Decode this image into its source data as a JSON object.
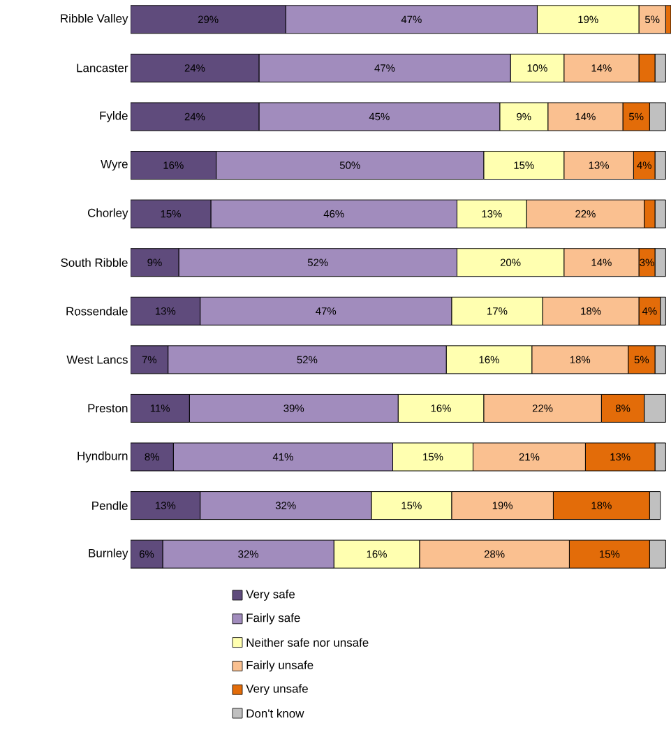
{
  "chart_data": {
    "type": "bar",
    "orientation": "horizontal",
    "stacked": true,
    "categories": [
      "Ribble Valley",
      "Lancaster",
      "Fylde",
      "Wyre",
      "Chorley",
      "South Ribble",
      "Rossendale",
      "West Lancs",
      "Preston",
      "Hyndburn",
      "Pendle",
      "Burnley"
    ],
    "tick_labels": "y",
    "legend": "bottom",
    "series": [
      {
        "name": "Very safe",
        "color": "#5f4b7c",
        "values": [
          29,
          24,
          24,
          16,
          15,
          9,
          13,
          7,
          11,
          8,
          13,
          6
        ],
        "value_labels": [
          "29%",
          "24%",
          "24%",
          "16%",
          "15%",
          "9%",
          "13%",
          "7%",
          "11%",
          "8%",
          "13%",
          "6%"
        ]
      },
      {
        "name": "Fairly safe",
        "color": "#a18cbd",
        "values": [
          47,
          47,
          45,
          50,
          46,
          52,
          47,
          52,
          39,
          41,
          32,
          32
        ],
        "value_labels": [
          "47%",
          "47%",
          "45%",
          "50%",
          "46%",
          "52%",
          "47%",
          "52%",
          "39%",
          "41%",
          "32%",
          "32%"
        ]
      },
      {
        "name": "Neither safe nor unsafe",
        "color": "#ffffb0",
        "values": [
          19,
          10,
          9,
          15,
          13,
          20,
          17,
          16,
          16,
          15,
          15,
          16
        ],
        "value_labels": [
          "19%",
          "10%",
          "9%",
          "15%",
          "13%",
          "20%",
          "17%",
          "16%",
          "16%",
          "15%",
          "15%",
          "16%"
        ]
      },
      {
        "name": "Fairly unsafe",
        "color": "#fac090",
        "values": [
          5,
          14,
          14,
          13,
          22,
          14,
          18,
          18,
          22,
          21,
          19,
          28
        ],
        "value_labels": [
          "5%",
          "14%",
          "14%",
          "13%",
          "22%",
          "14%",
          "18%",
          "18%",
          "22%",
          "21%",
          "19%",
          "28%"
        ]
      },
      {
        "name": "Very unsafe",
        "color": "#e36c09",
        "values": [
          1,
          3,
          5,
          4,
          2,
          3,
          4,
          5,
          8,
          13,
          18,
          15
        ],
        "value_labels": [
          null,
          null,
          "5%",
          "4%",
          null,
          "3%",
          "4%",
          "5%",
          "8%",
          "13%",
          "18%",
          "15%"
        ]
      },
      {
        "name": "Don't know",
        "color": "#c0c0c0",
        "values": [
          null,
          2,
          3,
          2,
          2,
          2,
          1,
          2,
          4,
          2,
          2,
          3
        ]
      }
    ]
  }
}
